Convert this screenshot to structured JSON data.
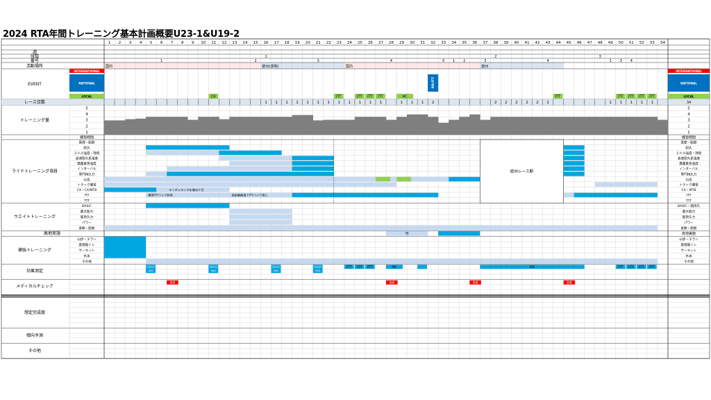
{
  "title": "2024  RTA年間トレーニング基本計画概要U23-1&U19-2",
  "row_labels": {
    "week_label": "週",
    "phase": "段階",
    "period_no": "番号",
    "activity_place": "活動場所",
    "event": "EVENT",
    "race_days": "レース日数",
    "training_volume": "トレーニング量",
    "training_hours": "練習時間",
    "ride_items": "ライドトレーニング項目",
    "weight_training": "ウエイトトレーニング",
    "altitude": "高地実施",
    "supplementary": "補強トレーニング",
    "effect_measurement": "効果測定",
    "medical_check": "メディカルチェック",
    "expected_completion": "想定完成度",
    "trend_prediction": "傾向予測",
    "other": "その他"
  },
  "ride_sub_items": [
    "基礎・脂肪",
    "耐久",
    "ミドル強度・持続",
    "高速耐久系強度",
    "無酸素系強度",
    "インターバル",
    "専門持久力",
    "山岳",
    "トラック練習",
    "CX・CX/MTB",
    "ITT",
    "TTT"
  ],
  "weight_sub_items": [
    "BASIC",
    "最大筋力",
    "筋持久力",
    "パワー",
    "柔軟・脂肪"
  ],
  "supp_sub_items": [
    "山歩・ヌラン",
    "基礎筋トレ",
    "サーキット",
    "水泳",
    "その他"
  ],
  "right_ride_items": [
    "柔軟・脂肪",
    "耐久",
    "ミドル強度・持続",
    "高速耐久系強度",
    "無酸素系強度",
    "インターバル",
    "専門持久力",
    "山岳",
    "トラック練習",
    "CX・MTB",
    "ITT",
    "TTT"
  ],
  "right_weight_items": [
    "BASIC・筋持久",
    "最大筋力",
    "筋持久力",
    "パワー",
    "柔軟・脂肪"
  ],
  "right_supp_items": [
    "山歩・ヌラン",
    "基礎筋トレ",
    "サーキット",
    "水泳",
    "その他"
  ],
  "volume_levels": [
    "5",
    "4",
    "3",
    "2",
    "1"
  ],
  "right_volume_levels": [
    "5",
    "4",
    "3",
    "2",
    "1"
  ],
  "right_race_days": "34",
  "right_hours_label": "練習時間",
  "right_altitude": "高地実施",
  "weeks": [
    "1",
    "2",
    "3",
    "4",
    "5",
    "6",
    "7",
    "8",
    "9",
    "10",
    "11",
    "12",
    "13",
    "14",
    "15",
    "16",
    "17",
    "18",
    "19",
    "20",
    "21",
    "22",
    "23",
    "24",
    "25",
    "26",
    "27",
    "28",
    "29",
    "30",
    "31",
    "32",
    "33",
    "34",
    "35",
    "36",
    "37",
    "38",
    "39",
    "40",
    "41",
    "42",
    "43",
    "44",
    "45",
    "46",
    "47",
    "48",
    "49",
    "50",
    "51",
    "52",
    "53",
    "54"
  ],
  "phase_marks": [
    {
      "week": 16,
      "text": "1"
    },
    {
      "week": 38,
      "text": "2"
    },
    {
      "week": 48,
      "text": "3"
    }
  ],
  "period_marks": [
    {
      "week": 6,
      "text": "1"
    },
    {
      "week": 15,
      "text": "2"
    },
    {
      "week": 21,
      "text": "3"
    },
    {
      "week": 28,
      "text": "4"
    },
    {
      "week": 33,
      "text": "0"
    },
    {
      "week": 34,
      "text": "1"
    },
    {
      "week": 35,
      "text": "2"
    },
    {
      "week": 37,
      "text": "3"
    },
    {
      "week": 43,
      "text": "4"
    },
    {
      "week": 49,
      "text": "1"
    },
    {
      "week": 50,
      "text": "3"
    },
    {
      "week": 51,
      "text": "4"
    }
  ],
  "places": [
    {
      "from": 1,
      "to": 15,
      "text": "国内"
    },
    {
      "from": 16,
      "to": 23,
      "text": "欧州(高地)"
    },
    {
      "from": 24,
      "to": 36,
      "text": "国内"
    },
    {
      "from": 37,
      "to": 44,
      "text": "欧州"
    }
  ],
  "event_labels": {
    "international": "INTERNATIONAL",
    "national": "NATIONAL",
    "local": "LOCAL",
    "right_international": "INTERNATIONAL",
    "right_national": "NATIONAL",
    "right_local": "LOCAL"
  },
  "events": [
    {
      "week": 11,
      "text": "CR"
    },
    {
      "week": 23,
      "text": "ITT"
    },
    {
      "week": 25,
      "text": "ITT"
    },
    {
      "week": 26,
      "text": "ITT"
    },
    {
      "week": 27,
      "text": "ITT"
    },
    {
      "week": 29,
      "text": "HC"
    },
    {
      "week": 44,
      "text": "ITT"
    },
    {
      "week": 50,
      "text": "ITT"
    },
    {
      "week": 51,
      "text": "ITT"
    },
    {
      "week": 52,
      "text": "ITT"
    },
    {
      "week": 53,
      "text": "ITT"
    }
  ],
  "national_event": {
    "week": 32,
    "text": "RR/ITT"
  },
  "race_days": [
    {
      "week": 16,
      "v": "1"
    },
    {
      "week": 17,
      "v": "1"
    },
    {
      "week": 18,
      "v": "1"
    },
    {
      "week": 19,
      "v": "1"
    },
    {
      "week": 20,
      "v": "1"
    },
    {
      "week": 21,
      "v": "1"
    },
    {
      "week": 22,
      "v": "1"
    },
    {
      "week": 23,
      "v": "1"
    },
    {
      "week": 24,
      "v": "1"
    },
    {
      "week": 25,
      "v": "1"
    },
    {
      "week": 26,
      "v": "1"
    },
    {
      "week": 27,
      "v": "1"
    },
    {
      "week": 29,
      "v": "1"
    },
    {
      "week": 30,
      "v": "1"
    },
    {
      "week": 31,
      "v": "1"
    },
    {
      "week": 32,
      "v": "2"
    },
    {
      "week": 38,
      "v": "2"
    },
    {
      "week": 39,
      "v": "2"
    },
    {
      "week": 40,
      "v": "2"
    },
    {
      "week": 41,
      "v": "2"
    },
    {
      "week": 42,
      "v": "2"
    },
    {
      "week": 43,
      "v": "2"
    },
    {
      "week": 49,
      "v": "1"
    },
    {
      "week": 50,
      "v": "1"
    },
    {
      "week": 51,
      "v": "1"
    },
    {
      "week": 52,
      "v": "1"
    },
    {
      "week": 53,
      "v": "1"
    }
  ],
  "volume": [
    2.4,
    2.4,
    2.6,
    2.7,
    3.0,
    3.0,
    3.0,
    3.0,
    2.5,
    3.0,
    3.0,
    2.6,
    3.0,
    3.0,
    3.0,
    3.0,
    3.0,
    3.0,
    3.3,
    3.3,
    2.4,
    2.5,
    2.5,
    2.5,
    3.0,
    3.0,
    3.0,
    2.5,
    3.0,
    3.4,
    3.4,
    3.0,
    2.0,
    2.5,
    3.0,
    3.4,
    2.5,
    3.0,
    3.0,
    3.0,
    3.0,
    3.0,
    3.0,
    3.0,
    3.0,
    3.0,
    3.0,
    3.0,
    3.0,
    3.0,
    3.0,
    3.0,
    3.0,
    2.5
  ],
  "ride_bars": [
    {
      "row": 1,
      "from": 5,
      "to": 12,
      "c": "blue"
    },
    {
      "row": 2,
      "from": 12,
      "to": 17,
      "c": "blue"
    },
    {
      "row": 3,
      "from": 19,
      "to": 22,
      "c": "blue"
    },
    {
      "row": 4,
      "from": 19,
      "to": 22,
      "c": "blue"
    },
    {
      "row": 5,
      "from": 19,
      "to": 22,
      "c": "blue"
    },
    {
      "row": 6,
      "from": 7,
      "to": 22,
      "c": "blue"
    },
    {
      "row": 7,
      "from": 34,
      "to": 36,
      "c": "blue"
    },
    {
      "row": 9,
      "from": 1,
      "to": 5,
      "c": "blue"
    },
    {
      "row": 10,
      "from": 19,
      "to": 32,
      "c": "blue"
    },
    {
      "row": 10,
      "from": 46,
      "to": 53,
      "c": "blue"
    },
    {
      "row": 1,
      "from": 45,
      "to": 46,
      "c": "blue"
    },
    {
      "row": 2,
      "from": 45,
      "to": 46,
      "c": "blue"
    },
    {
      "row": 3,
      "from": 45,
      "to": 46,
      "c": "blue"
    },
    {
      "row": 4,
      "from": 45,
      "to": 46,
      "c": "blue"
    },
    {
      "row": 5,
      "from": 45,
      "to": 46,
      "c": "blue"
    },
    {
      "row": 6,
      "from": 45,
      "to": 46,
      "c": "blue"
    }
  ],
  "ride_light_bars": [
    {
      "row": 2,
      "from": 5,
      "to": 11
    },
    {
      "row": 3,
      "from": 12,
      "to": 18
    },
    {
      "row": 4,
      "from": 13,
      "to": 18
    },
    {
      "row": 5,
      "from": 7,
      "to": 18
    },
    {
      "row": 6,
      "from": 5,
      "to": 6
    },
    {
      "row": 7,
      "from": 1,
      "to": 36
    },
    {
      "row": 8,
      "from": 1,
      "to": 28
    },
    {
      "row": 8,
      "from": 48,
      "to": 53
    },
    {
      "row": 9,
      "from": 6,
      "to": 12
    },
    {
      "row": 10,
      "from": 5,
      "to": 18
    },
    {
      "row": 10,
      "from": 45,
      "to": 45
    }
  ],
  "green_marks": [
    {
      "row": 7,
      "week": 27
    },
    {
      "row": 7,
      "week": 29
    }
  ],
  "ride_notes": [
    {
      "row": 9,
      "week": 7,
      "text": "エンデュランスを兼ねて可"
    },
    {
      "row": 10,
      "week": 5,
      "text": "通常ITTバイク利用"
    },
    {
      "row": 10,
      "week": 13,
      "text": "長距離練習でITTバイク導入"
    }
  ],
  "euro_race": "欧州レース期",
  "weight_bars": [
    {
      "row": 0,
      "from": 5,
      "to": 12,
      "c": "blue"
    },
    {
      "row": 1,
      "from": 13,
      "to": 18,
      "c": "light"
    },
    {
      "row": 2,
      "from": 13,
      "to": 18,
      "c": "light"
    },
    {
      "row": 3,
      "from": 13,
      "to": 18,
      "c": "light"
    },
    {
      "row": 4,
      "from": 1,
      "to": 53,
      "c": "light"
    }
  ],
  "altitude_bars": [
    {
      "from": 28,
      "to": 31,
      "c": "light",
      "text": "可"
    },
    {
      "from": 33,
      "to": 36,
      "c": "blue",
      "text": ""
    }
  ],
  "supp_bars": [
    {
      "from": 1,
      "to": 4,
      "rows": [
        0,
        1,
        2,
        3
      ],
      "c": "blue"
    },
    {
      "from": 5,
      "to": 53,
      "rows": [
        4
      ],
      "c": "light"
    }
  ],
  "effect_marks": [
    {
      "week": 5,
      "text": "20min test"
    },
    {
      "week": 11,
      "text": "20min test"
    },
    {
      "week": 17,
      "text": "20min test"
    },
    {
      "week": 21,
      "text": "20min test"
    },
    {
      "week": 24,
      "text": "ITT"
    },
    {
      "week": 25,
      "text": "ITT"
    },
    {
      "week": 26,
      "text": "ITT"
    },
    {
      "week": 28,
      "text": "HC"
    },
    {
      "week": 31,
      "text": ""
    },
    {
      "week": 50,
      "text": "ITT"
    },
    {
      "week": 51,
      "text": "ITT"
    },
    {
      "week": 52,
      "text": "ITT"
    },
    {
      "week": 53,
      "text": "ITT"
    }
  ],
  "effect_rr": {
    "from": 37,
    "to": 46,
    "text": "RR"
  },
  "medical_marks": [
    {
      "week": 7,
      "text": "血液"
    },
    {
      "week": 28,
      "text": "血液"
    },
    {
      "week": 36,
      "text": "血液"
    },
    {
      "week": 45,
      "text": "血液"
    }
  ],
  "colors": {
    "blue": "#00a6e0",
    "light": "#c5d9f1",
    "gray": "#7f7f7f",
    "green": "#92d050",
    "red": "#ff0000",
    "navy": "#0070c0",
    "pink": "#fde9e9",
    "grid": "#bfbfbf"
  }
}
